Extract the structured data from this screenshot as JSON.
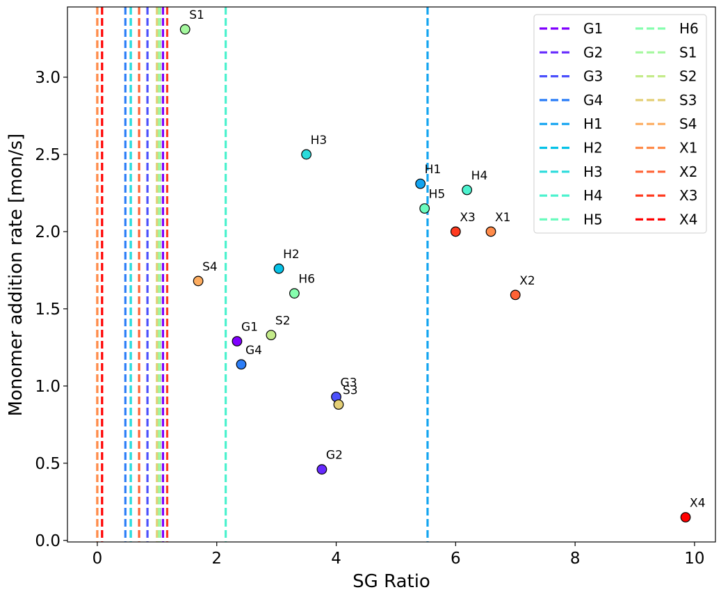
{
  "chart_data": {
    "type": "scatter",
    "xlabel": "SG Ratio",
    "ylabel": "Monomer addition rate [mon/s]",
    "xlim": [
      -0.5,
      10.35
    ],
    "ylim": [
      -0.01,
      3.455
    ],
    "xticks": [
      0,
      2,
      4,
      6,
      8,
      10
    ],
    "xtick_labels": [
      "0",
      "2",
      "4",
      "6",
      "8",
      "10"
    ],
    "yticks": [
      0.0,
      0.5,
      1.0,
      1.5,
      2.0,
      2.5,
      3.0
    ],
    "ytick_labels": [
      "0.0",
      "0.5",
      "1.0",
      "1.5",
      "2.0",
      "2.5",
      "3.0"
    ],
    "grid": false,
    "legend_position": "top-right",
    "legend_columns": 2,
    "series": [
      {
        "name": "G1",
        "color": "#8000ff",
        "vline_x": 1.1,
        "point": {
          "x": 2.34,
          "y": 1.29
        }
      },
      {
        "name": "G2",
        "color": "#6629fe",
        "vline_x": 1.05,
        "point": {
          "x": 3.76,
          "y": 0.46
        }
      },
      {
        "name": "G3",
        "color": "#4c50fc",
        "vline_x": 0.84,
        "point": {
          "x": 4.0,
          "y": 0.93
        }
      },
      {
        "name": "G4",
        "color": "#2c7ef7",
        "vline_x": 0.47,
        "point": {
          "x": 2.41,
          "y": 1.14
        }
      },
      {
        "name": "H1",
        "color": "#12a4f0",
        "vline_x": 5.53,
        "point": {
          "x": 5.41,
          "y": 2.31
        }
      },
      {
        "name": "H2",
        "color": "#06c2e7",
        "vline_x": 0.56,
        "point": {
          "x": 3.04,
          "y": 1.76
        }
      },
      {
        "name": "H3",
        "color": "#2adcdc",
        "vline_x": 0.56,
        "point": {
          "x": 3.5,
          "y": 2.5
        }
      },
      {
        "name": "H4",
        "color": "#4cf2ce",
        "vline_x": 2.15,
        "point": {
          "x": 6.19,
          "y": 2.27
        }
      },
      {
        "name": "H5",
        "color": "#6afbbe",
        "vline_x": 1.01,
        "point": {
          "x": 5.48,
          "y": 2.15
        }
      },
      {
        "name": "H6",
        "color": "#86feae",
        "vline_x": 1.03,
        "point": {
          "x": 3.3,
          "y": 1.6
        }
      },
      {
        "name": "S1",
        "color": "#a4f89e",
        "vline_x": 1.05,
        "point": {
          "x": 1.47,
          "y": 3.31
        }
      },
      {
        "name": "S2",
        "color": "#c4eb8a",
        "vline_x": 1.0,
        "point": {
          "x": 2.91,
          "y": 1.33
        }
      },
      {
        "name": "S3",
        "color": "#e4cf76",
        "vline_x": 1.0,
        "point": {
          "x": 4.04,
          "y": 0.88
        }
      },
      {
        "name": "S4",
        "color": "#fdac5f",
        "vline_x": 0.0,
        "point": {
          "x": 1.69,
          "y": 1.68
        }
      },
      {
        "name": "X1",
        "color": "#ff8b4a",
        "vline_x": 0.0,
        "point": {
          "x": 6.59,
          "y": 2.0
        }
      },
      {
        "name": "X2",
        "color": "#ff6235",
        "vline_x": 0.7,
        "point": {
          "x": 7.0,
          "y": 1.59
        }
      },
      {
        "name": "X3",
        "color": "#ff3a1f",
        "vline_x": 1.17,
        "point": {
          "x": 6.0,
          "y": 2.0
        }
      },
      {
        "name": "X4",
        "color": "#ff0000",
        "vline_x": 0.08,
        "point": {
          "x": 9.85,
          "y": 0.15
        }
      }
    ]
  }
}
